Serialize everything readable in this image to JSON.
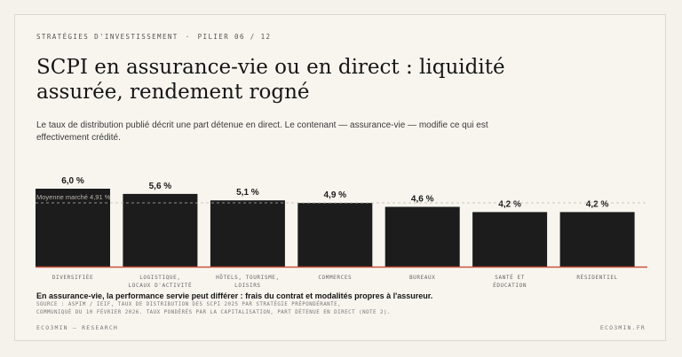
{
  "header": {
    "kicker_left": "Stratégies d'investissement",
    "kicker_sep": "·",
    "kicker_right": "Pilier 06 / 12",
    "title": "SCPI en assurance-vie ou en direct : liquidité assurée, rendement rogné",
    "subtitle": "Le taux de distribution publié décrit une part détenue en direct. Le contenant — assurance-vie — modifie ce qui est effectivement crédité."
  },
  "chart_data": {
    "type": "bar",
    "categories": [
      [
        "Diversifiée"
      ],
      [
        "Logistique,",
        "locaux d'activité"
      ],
      [
        "Hôtels, tourisme,",
        "loisirs"
      ],
      [
        "Commerces"
      ],
      [
        "Bureaux"
      ],
      [
        "Santé et",
        "éducation"
      ],
      [
        "Résidentiel"
      ]
    ],
    "values": [
      6.0,
      5.6,
      5.1,
      4.9,
      4.6,
      4.2,
      4.2
    ],
    "value_labels": [
      "6,0 %",
      "5,6 %",
      "5,1 %",
      "4,9 %",
      "4,6 %",
      "4,2 %",
      "4,2 %"
    ],
    "reference_line": {
      "value": 4.91,
      "label": "Moyenne marché 4,91 %"
    },
    "ylim": [
      0,
      6.0
    ],
    "bar_color": "#1c1c1c",
    "baseline_color": "#c8553d",
    "reference_color": "#bdb8b0"
  },
  "note": "En assurance-vie, la performance servie peut différer : frais du contrat et modalités propres à l'assureur.",
  "source": [
    "Source : ASPIM / IEIF, taux de distribution des SCPI 2025 par stratégie prépondérante,",
    "communiqué du 10 février 2026. Taux pondérés par la capitalisation, part détenue en direct (note 2)."
  ],
  "footer": {
    "left": "Eco3min — Research",
    "right": "eco3min.fr"
  }
}
